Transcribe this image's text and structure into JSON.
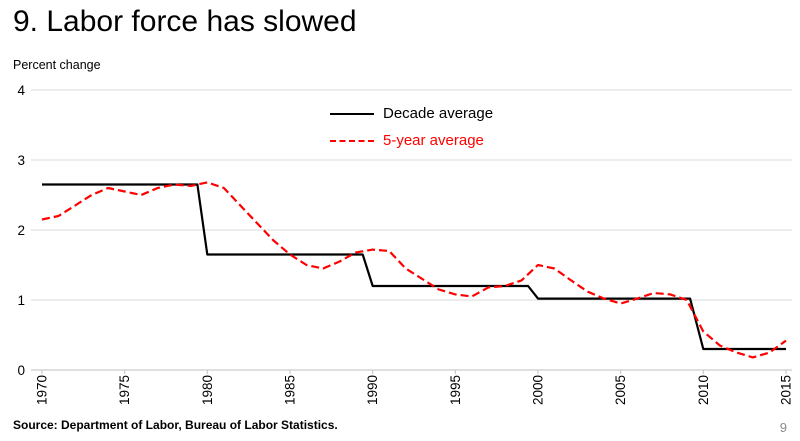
{
  "title": "9. Labor force has slowed",
  "source": "Source: Department of Labor, Bureau of Labor Statistics.",
  "page_number": "9",
  "colors": {
    "decade_average": "#000000",
    "five_year_average": "#ff0000",
    "gridline": "#d9d9d9",
    "axis": "#bfbfbf",
    "page_number": "#8a8a8a"
  },
  "chart_data": {
    "type": "line",
    "title": "9. Labor force has slowed",
    "xlabel": "",
    "ylabel": "Percent change",
    "xlim": [
      1969.5,
      2015.8
    ],
    "ylim": [
      0,
      4
    ],
    "yticks": [
      0,
      1,
      2,
      3,
      4
    ],
    "xticks": [
      1970,
      1975,
      1980,
      1985,
      1990,
      1995,
      2000,
      2005,
      2010,
      2015
    ],
    "grid": true,
    "legend_position": "top-center-inside",
    "x_tick_label_rotation": -90,
    "series": [
      {
        "name": "Decade average",
        "color": "#000000",
        "style": "solid",
        "points": [
          [
            1970,
            2.65
          ],
          [
            1979.4,
            2.65
          ],
          [
            1980,
            1.65
          ],
          [
            1989.4,
            1.65
          ],
          [
            1990,
            1.2
          ],
          [
            1999.4,
            1.2
          ],
          [
            2000,
            1.02
          ],
          [
            2009.2,
            1.02
          ],
          [
            2010,
            0.3
          ],
          [
            2015,
            0.3
          ]
        ]
      },
      {
        "name": "5-year average",
        "color": "#ff0000",
        "style": "dashed",
        "points": [
          [
            1970,
            2.15
          ],
          [
            1971,
            2.2
          ],
          [
            1972,
            2.35
          ],
          [
            1973,
            2.5
          ],
          [
            1974,
            2.6
          ],
          [
            1975,
            2.55
          ],
          [
            1976,
            2.5
          ],
          [
            1977,
            2.6
          ],
          [
            1978,
            2.65
          ],
          [
            1979,
            2.63
          ],
          [
            1980,
            2.68
          ],
          [
            1981,
            2.6
          ],
          [
            1982,
            2.35
          ],
          [
            1983,
            2.1
          ],
          [
            1984,
            1.85
          ],
          [
            1985,
            1.65
          ],
          [
            1986,
            1.5
          ],
          [
            1987,
            1.45
          ],
          [
            1988,
            1.55
          ],
          [
            1989,
            1.68
          ],
          [
            1990,
            1.72
          ],
          [
            1991,
            1.7
          ],
          [
            1992,
            1.45
          ],
          [
            1993,
            1.3
          ],
          [
            1994,
            1.15
          ],
          [
            1995,
            1.08
          ],
          [
            1996,
            1.05
          ],
          [
            1997,
            1.18
          ],
          [
            1998,
            1.2
          ],
          [
            1999,
            1.28
          ],
          [
            2000,
            1.5
          ],
          [
            2001,
            1.45
          ],
          [
            2002,
            1.28
          ],
          [
            2003,
            1.12
          ],
          [
            2004,
            1.02
          ],
          [
            2005,
            0.95
          ],
          [
            2006,
            1.02
          ],
          [
            2007,
            1.1
          ],
          [
            2008,
            1.08
          ],
          [
            2009,
            1.0
          ],
          [
            2010,
            0.55
          ],
          [
            2011,
            0.35
          ],
          [
            2012,
            0.25
          ],
          [
            2013,
            0.18
          ],
          [
            2014,
            0.25
          ],
          [
            2015,
            0.42
          ]
        ]
      }
    ]
  }
}
